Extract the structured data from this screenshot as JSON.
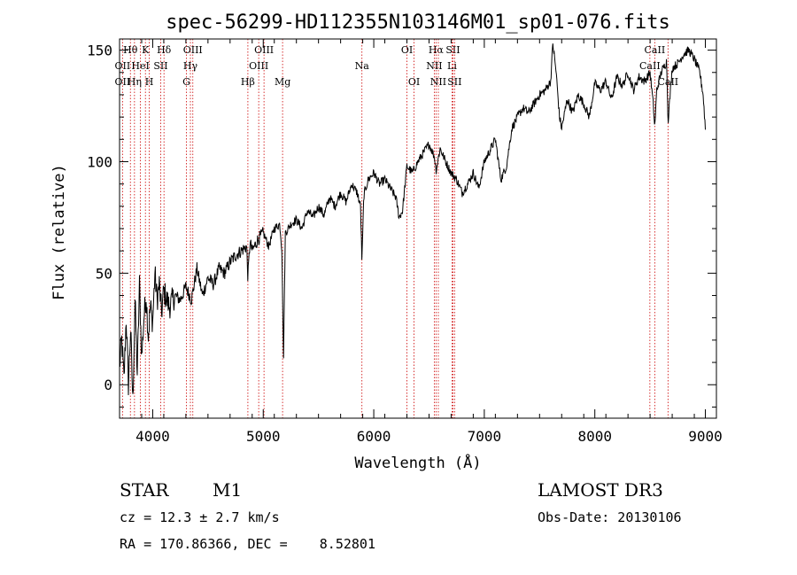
{
  "chart_data": {
    "type": "line",
    "title": "spec-56299-HD112355N103146M01_sp01-076.fits",
    "xlabel": "Wavelength (Å)",
    "ylabel": "Flux (relative)",
    "xlim": [
      3700,
      9100
    ],
    "ylim": [
      -15,
      155
    ],
    "x_ticks": [
      4000,
      5000,
      6000,
      7000,
      8000,
      9000
    ],
    "y_ticks": [
      0,
      50,
      100,
      150
    ],
    "grid": false,
    "series": [
      {
        "name": "spectrum",
        "x": [
          3700,
          3720,
          3740,
          3760,
          3780,
          3800,
          3820,
          3840,
          3860,
          3880,
          3900,
          3920,
          3940,
          3960,
          3980,
          4000,
          4020,
          4040,
          4060,
          4080,
          4100,
          4150,
          4200,
          4250,
          4300,
          4350,
          4400,
          4450,
          4500,
          4550,
          4600,
          4650,
          4700,
          4750,
          4800,
          4850,
          4861,
          4880,
          4900,
          4950,
          5000,
          5050,
          5100,
          5150,
          5170,
          5183,
          5200,
          5250,
          5300,
          5350,
          5400,
          5450,
          5500,
          5550,
          5600,
          5650,
          5700,
          5750,
          5800,
          5850,
          5880,
          5893,
          5910,
          5950,
          6000,
          6050,
          6100,
          6150,
          6200,
          6230,
          6260,
          6300,
          6350,
          6400,
          6450,
          6500,
          6550,
          6563,
          6600,
          6650,
          6700,
          6750,
          6800,
          6850,
          6900,
          6950,
          7000,
          7050,
          7100,
          7150,
          7200,
          7250,
          7300,
          7350,
          7400,
          7450,
          7500,
          7550,
          7600,
          7620,
          7650,
          7680,
          7700,
          7750,
          7800,
          7850,
          7900,
          7950,
          8000,
          8050,
          8100,
          8150,
          8200,
          8250,
          8300,
          8350,
          8400,
          8450,
          8500,
          8530,
          8542,
          8560,
          8600,
          8650,
          8662,
          8700,
          8750,
          8800,
          8850,
          8900,
          8950,
          8980,
          9000
        ],
        "y": [
          8,
          20,
          2,
          30,
          0,
          25,
          -8,
          38,
          5,
          45,
          12,
          30,
          40,
          22,
          35,
          28,
          50,
          38,
          45,
          32,
          42,
          35,
          40,
          38,
          44,
          38,
          52,
          40,
          48,
          45,
          52,
          50,
          55,
          58,
          60,
          62,
          48,
          64,
          60,
          65,
          68,
          62,
          70,
          72,
          60,
          10,
          68,
          72,
          74,
          70,
          78,
          75,
          80,
          76,
          84,
          80,
          86,
          82,
          90,
          86,
          80,
          55,
          85,
          92,
          95,
          90,
          92,
          88,
          84,
          75,
          78,
          98,
          95,
          100,
          104,
          108,
          102,
          96,
          106,
          100,
          95,
          92,
          86,
          90,
          95,
          88,
          100,
          105,
          110,
          92,
          98,
          115,
          120,
          124,
          122,
          126,
          130,
          132,
          136,
          153,
          140,
          120,
          115,
          128,
          122,
          130,
          126,
          120,
          135,
          132,
          136,
          128,
          138,
          134,
          140,
          132,
          138,
          136,
          140,
          125,
          115,
          132,
          140,
          145,
          118,
          142,
          144,
          148,
          150,
          146,
          140,
          130,
          115
        ]
      }
    ],
    "line_markers": [
      {
        "label": "Hθ",
        "x": 3798,
        "row": 1
      },
      {
        "label": "OII",
        "x": 3727,
        "row": 2
      },
      {
        "label": "OII",
        "x": 3727,
        "row": 3
      },
      {
        "label": "K",
        "x": 3934,
        "row": 1
      },
      {
        "label": "HeI",
        "x": 3889,
        "row": 2
      },
      {
        "label": "Hη",
        "x": 3835,
        "row": 3
      },
      {
        "label": "Hδ",
        "x": 4102,
        "row": 1
      },
      {
        "label": "SII",
        "x": 4072,
        "row": 2
      },
      {
        "label": "H",
        "x": 3969,
        "row": 3
      },
      {
        "label": "OIII",
        "x": 4363,
        "row": 1
      },
      {
        "label": "Hγ",
        "x": 4341,
        "row": 2
      },
      {
        "label": "G",
        "x": 4305,
        "row": 3
      },
      {
        "label": "OIII",
        "x": 5007,
        "row": 1
      },
      {
        "label": "OIII",
        "x": 4959,
        "row": 2
      },
      {
        "label": "Hβ",
        "x": 4861,
        "row": 3
      },
      {
        "label": "Mg",
        "x": 5175,
        "row": 3
      },
      {
        "label": "Na",
        "x": 5893,
        "row": 2
      },
      {
        "label": "OI",
        "x": 6300,
        "row": 1
      },
      {
        "label": "OI",
        "x": 6364,
        "row": 3
      },
      {
        "label": "Hα",
        "x": 6563,
        "row": 1
      },
      {
        "label": "SII",
        "x": 6716,
        "row": 1
      },
      {
        "label": "NII",
        "x": 6548,
        "row": 2
      },
      {
        "label": "Li",
        "x": 6708,
        "row": 2
      },
      {
        "label": "NII",
        "x": 6584,
        "row": 3
      },
      {
        "label": "SII",
        "x": 6731,
        "row": 3
      },
      {
        "label": "CaII",
        "x": 8542,
        "row": 1
      },
      {
        "label": "CaII",
        "x": 8498,
        "row": 2
      },
      {
        "label": "CaII",
        "x": 8662,
        "row": 3
      }
    ]
  },
  "info": {
    "object_class": "STAR",
    "subclass": "M1",
    "survey": "LAMOST DR3",
    "cz": "cz = 12.3 ± 2.7 km/s",
    "obs_date": "Obs-Date: 20130106",
    "coords": "RA = 170.86366, DEC =    8.52801"
  },
  "colors": {
    "spectrum": "#000000",
    "marker": "#cc0000"
  }
}
